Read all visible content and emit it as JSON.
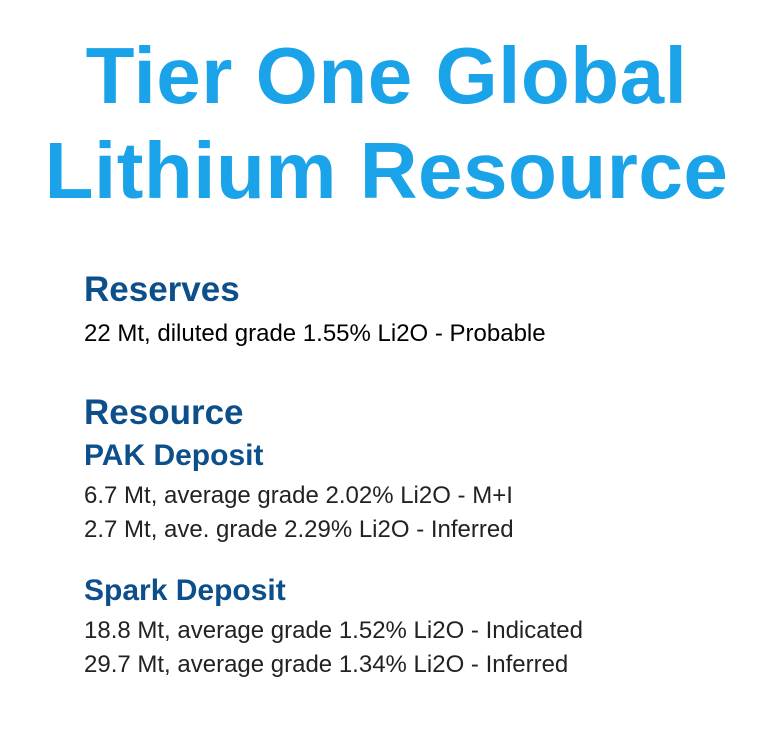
{
  "title": {
    "line1": "Tier One Global",
    "line2": "Lithium Resource"
  },
  "reserves": {
    "heading": "Reserves",
    "lines": [
      "22 Mt, diluted grade 1.55% Li2O - Probable"
    ]
  },
  "resource": {
    "heading": "Resource",
    "deposits": [
      {
        "name": "PAK Deposit",
        "lines": [
          "6.7 Mt, average grade 2.02% Li2O - M+I",
          "2.7 Mt, ave. grade 2.29% Li2O - Inferred"
        ]
      },
      {
        "name": "Spark Deposit",
        "lines": [
          "18.8 Mt, average grade 1.52% Li2O - Indicated",
          "29.7 Mt, average grade 1.34% Li2O - Inferred"
        ]
      }
    ]
  },
  "colors": {
    "title": "#1aa3e8",
    "heading": "#0d4f8a",
    "body": "#000000"
  }
}
